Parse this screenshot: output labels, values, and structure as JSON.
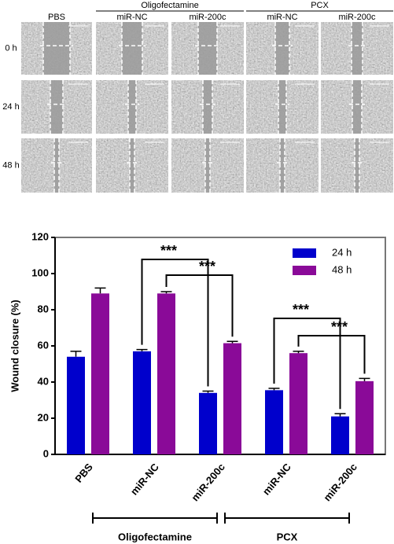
{
  "micrographs": {
    "groups": [
      "Oligofectamine",
      "PCX"
    ],
    "columns": [
      "PBS",
      "miR-NC",
      "miR-200c",
      "miR-NC",
      "miR-200c"
    ],
    "rows": [
      "0 h",
      "24 h",
      "48 h"
    ]
  },
  "chart_data": {
    "type": "bar",
    "y_label": "Wound closure (%)",
    "categories": [
      "PBS",
      "miR-NC",
      "miR-200c",
      "miR-NC",
      "miR-200c"
    ],
    "groups": [
      "Oligofectamine",
      "PCX"
    ],
    "series": [
      {
        "name": "24 h",
        "color": "#0000cc",
        "values": [
          54,
          57,
          34,
          35.5,
          21
        ],
        "errors": [
          3,
          1,
          1,
          1,
          1.5
        ]
      },
      {
        "name": "48 h",
        "color": "#8a0a98",
        "values": [
          89,
          89,
          61.5,
          56,
          40.5
        ],
        "errors": [
          3,
          1,
          1,
          1,
          1.5
        ]
      }
    ],
    "annotations": [
      "***",
      "***",
      "***",
      "***"
    ],
    "ylim": [
      0,
      120
    ],
    "yticks": [
      0,
      20,
      40,
      60,
      80,
      100,
      120
    ],
    "legend": "top-right"
  }
}
